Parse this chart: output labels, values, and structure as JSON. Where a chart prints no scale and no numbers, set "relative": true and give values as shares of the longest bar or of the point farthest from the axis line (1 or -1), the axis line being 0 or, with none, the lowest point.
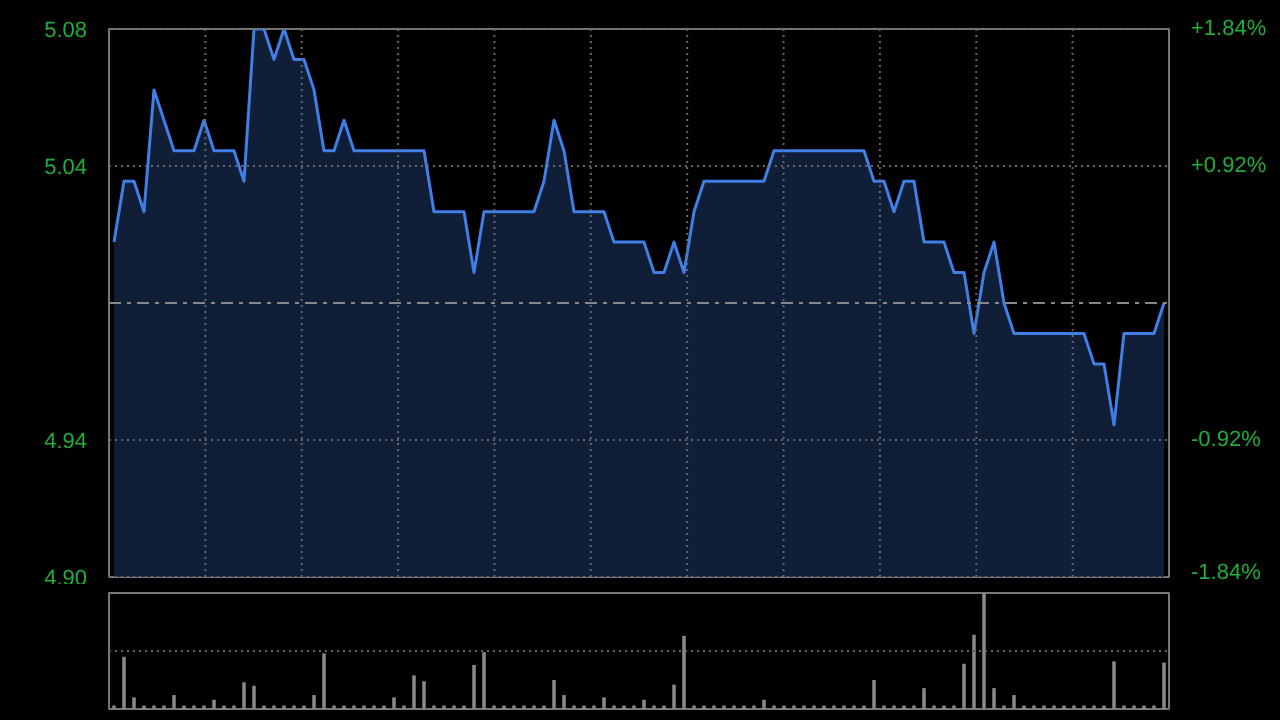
{
  "chart_data": [
    {
      "type": "area",
      "categories": [
        null,
        null,
        null,
        null,
        null,
        null,
        null,
        null,
        null,
        null,
        null,
        null,
        null,
        null,
        null,
        null,
        null,
        null,
        null,
        null,
        null,
        null,
        null,
        null,
        null,
        null,
        null,
        null,
        null,
        null,
        null,
        null,
        null,
        null,
        null,
        null,
        null,
        null,
        null,
        null,
        null,
        null,
        null,
        null,
        null,
        null,
        null,
        null,
        null,
        null,
        null,
        null,
        null,
        null,
        null,
        null,
        null,
        null,
        null,
        null,
        null,
        null,
        null,
        null,
        null,
        null,
        null,
        null,
        null,
        null,
        null,
        null,
        null,
        null,
        null,
        null,
        null,
        null,
        null,
        null,
        null,
        null,
        null,
        null,
        null,
        null,
        null,
        null,
        null,
        null,
        null,
        null,
        null,
        null,
        null,
        null,
        null,
        null,
        null,
        null,
        null,
        null,
        null,
        null,
        null,
        null
      ],
      "series": [
        {
          "color": "#3f7fe6",
          "values": [
            5.01,
            5.03,
            5.03,
            5.02,
            5.06,
            5.05,
            5.04,
            5.04,
            5.04,
            5.05,
            5.04,
            5.04,
            5.04,
            5.03,
            5.08,
            5.08,
            5.07,
            5.08,
            5.07,
            5.07,
            5.06,
            5.04,
            5.04,
            5.05,
            5.04,
            5.04,
            5.04,
            5.04,
            5.04,
            5.04,
            5.04,
            5.04,
            5.02,
            5.02,
            5.02,
            5.02,
            5.0,
            5.02,
            5.02,
            5.02,
            5.02,
            5.02,
            5.02,
            5.03,
            5.05,
            5.04,
            5.02,
            5.02,
            5.02,
            5.02,
            5.01,
            5.01,
            5.01,
            5.01,
            5.0,
            5.0,
            5.01,
            5.0,
            5.02,
            5.03,
            5.03,
            5.03,
            5.03,
            5.03,
            5.03,
            5.03,
            5.04,
            5.04,
            5.04,
            5.04,
            5.04,
            5.04,
            5.04,
            5.04,
            5.04,
            5.04,
            5.03,
            5.03,
            5.02,
            5.03,
            5.03,
            5.01,
            5.01,
            5.01,
            5.0,
            5.0,
            4.98,
            5.0,
            5.01,
            4.99,
            4.98,
            4.98,
            4.98,
            4.98,
            4.98,
            4.98,
            4.98,
            4.98,
            4.97,
            4.97,
            4.95,
            4.98,
            4.98,
            4.98,
            4.98,
            4.99
          ]
        }
      ],
      "ylim": [
        4.9,
        5.08
      ],
      "yticks": [
        {
          "value": 4.9,
          "label": "4.90"
        },
        {
          "value": 4.945,
          "label": "4.94"
        },
        {
          "value": 5.035,
          "label": "5.04"
        },
        5.08
      ],
      "y2lim": [
        -1.84,
        1.84
      ],
      "y2ticks": [
        {
          "value": -1.84,
          "label": "-1.84%"
        },
        {
          "value": -0.92,
          "label": "-0.92%"
        },
        {
          "value": 0.92,
          "label": "+0.92%"
        },
        {
          "value": 1.84,
          "label": "+1.84%"
        }
      ],
      "ref_lines": [
        {
          "axis": "y",
          "value": 4.99,
          "label": null,
          "color": "#888888",
          "line_style": "dashed"
        }
      ],
      "grid": true,
      "tick_labels": "y"
    },
    {
      "type": "bar",
      "relative": true,
      "categories": [
        null,
        null,
        null,
        null,
        null,
        null,
        null,
        null,
        null,
        null,
        null,
        null,
        null,
        null,
        null,
        null,
        null,
        null,
        null,
        null,
        null,
        null,
        null,
        null,
        null,
        null,
        null,
        null,
        null,
        null,
        null,
        null,
        null,
        null,
        null,
        null,
        null,
        null,
        null,
        null,
        null,
        null,
        null,
        null,
        null,
        null,
        null,
        null,
        null,
        null,
        null,
        null,
        null,
        null,
        null,
        null,
        null,
        null,
        null,
        null,
        null,
        null,
        null,
        null,
        null,
        null,
        null,
        null,
        null,
        null,
        null,
        null,
        null,
        null,
        null,
        null,
        null,
        null,
        null,
        null,
        null,
        null,
        null,
        null,
        null,
        null,
        null,
        null,
        null,
        null,
        null,
        null,
        null,
        null,
        null,
        null,
        null,
        null,
        null,
        null,
        null,
        null,
        null,
        null,
        null,
        null
      ],
      "color": "#8a8a8a",
      "values": [
        0.03,
        0.45,
        0.1,
        0.03,
        0.03,
        0.03,
        0.12,
        0.03,
        0.03,
        0.03,
        0.08,
        0.03,
        0.03,
        0.23,
        0.2,
        0.03,
        0.03,
        0.03,
        0.03,
        0.03,
        0.12,
        0.48,
        0.03,
        0.03,
        0.03,
        0.03,
        0.03,
        0.03,
        0.1,
        0.03,
        0.29,
        0.24,
        0.03,
        0.03,
        0.03,
        0.03,
        0.38,
        0.49,
        0.03,
        0.03,
        0.03,
        0.03,
        0.03,
        0.03,
        0.25,
        0.12,
        0.03,
        0.03,
        0.03,
        0.1,
        0.03,
        0.03,
        0.03,
        0.08,
        0.03,
        0.03,
        0.21,
        0.63,
        0.03,
        0.03,
        0.03,
        0.03,
        0.03,
        0.03,
        0.03,
        0.08,
        0.03,
        0.03,
        0.03,
        0.03,
        0.03,
        0.03,
        0.03,
        0.03,
        0.03,
        0.03,
        0.25,
        0.03,
        0.03,
        0.03,
        0.03,
        0.18,
        0.03,
        0.03,
        0.03,
        0.39,
        0.64,
        1.0,
        0.18,
        0.03,
        0.12,
        0.03,
        0.03,
        0.03,
        0.03,
        0.03,
        0.03,
        0.03,
        0.03,
        0.03,
        0.41,
        0.03,
        0.03,
        0.03,
        0.03,
        0.4
      ],
      "ref_lines": [
        {
          "axis": "y",
          "value": 0.5,
          "label": null,
          "color": "#666666",
          "line_style": "dotted"
        }
      ],
      "tick_labels": false
    }
  ]
}
